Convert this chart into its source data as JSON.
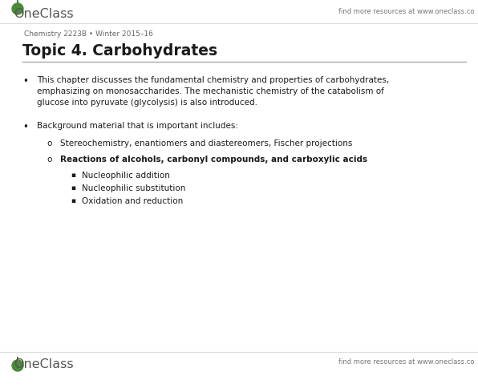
{
  "bg_color": "#ffffff",
  "header_subtext": "Chemistry 2223B • Winter 2015–16",
  "header_right": "find more resources at www.oneclass.co",
  "title": "Topic 4. Carbohydrates",
  "footer_right": "find more resources at www.oneclass.co",
  "bullet1_lines": [
    "This chapter discusses the fundamental chemistry and properties of carbohydrates,",
    "emphasizing on monosaccharides. The mechanistic chemistry of the catabolism of",
    "glucose into pyruvate (glycolysis) is also introduced."
  ],
  "bullet2": "Background material that is important includes:",
  "sub1": "Stereochemistry, enantiomers and diastereomers, Fischer projections",
  "sub2": "Reactions of alcohols, carbonyl compounds, and carboxylic acids",
  "subsub1": "Nucleophilic addition",
  "subsub2": "Nucleophilic substitution",
  "subsub3": "Oxidation and reduction",
  "logo_color": "#4a8a3a",
  "text_color": "#1a1a1a",
  "gray_color": "#777777",
  "line_color": "#aaaaaa",
  "title_fontsize": 13.5,
  "body_fontsize": 7.5,
  "small_fontsize": 6.0,
  "logo_fontsize": 11.5,
  "subtext_fontsize": 6.5
}
